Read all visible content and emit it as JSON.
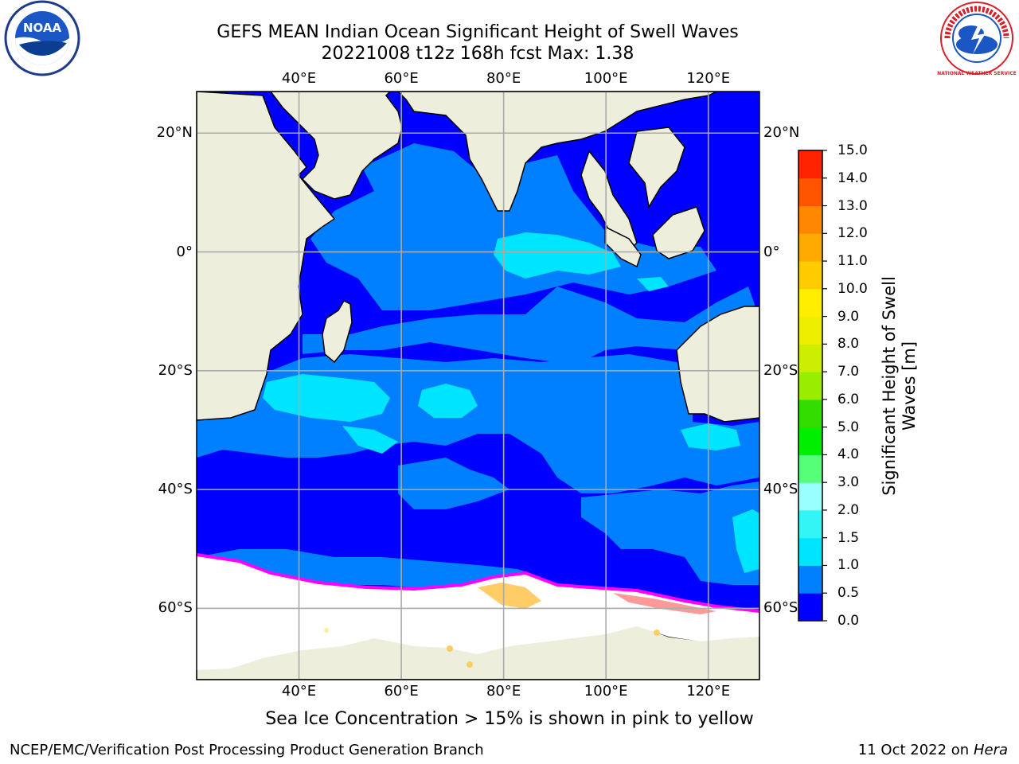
{
  "header": {
    "title_line1": "GEFS MEAN Indian Ocean Significant Height of Swell Waves",
    "title_line2": "20221008 t12z 168h fcst   Max: 1.38"
  },
  "logos": {
    "left_text": "NOAA",
    "right_text": "NATIONAL WEATHER SERVICE"
  },
  "map": {
    "lon_range": [
      20,
      130
    ],
    "lat_range": [
      -72,
      27
    ],
    "lon_ticks": [
      "40°E",
      "60°E",
      "80°E",
      "100°E",
      "120°E"
    ],
    "lon_tick_values": [
      40,
      60,
      80,
      100,
      120
    ],
    "lat_ticks": [
      "20°N",
      "0°",
      "20°S",
      "40°S",
      "60°S"
    ],
    "lat_tick_values": [
      20,
      0,
      -20,
      -40,
      -60
    ],
    "grid": true,
    "colors": {
      "land": "#eeeedd",
      "sea_ice": "#ffffff",
      "ice_edge": [
        "#ff00ff",
        "#ff9999",
        "#ffcc66",
        "#ffee99"
      ]
    }
  },
  "colorbar": {
    "label_line1": "Significant Height of Swell",
    "label_line2": "Waves [m]",
    "ticks": [
      "0.0",
      "0.5",
      "1.0",
      "1.5",
      "2.0",
      "3.0",
      "4.0",
      "5.0",
      "6.0",
      "7.0",
      "8.0",
      "9.0",
      "10.0",
      "11.0",
      "12.0",
      "13.0",
      "14.0",
      "15.0"
    ],
    "colors": [
      "#0000ff",
      "#0080ff",
      "#00e5ff",
      "#33f5f5",
      "#99ffff",
      "#55ff77",
      "#00ee00",
      "#33dd00",
      "#99ee00",
      "#ccee00",
      "#eeee00",
      "#ffee00",
      "#ffcc00",
      "#ffaa00",
      "#ff8800",
      "#ff5500",
      "#ff2200"
    ]
  },
  "notes": {
    "ice_note": "Sea Ice Concentration > 15% is shown in pink to yellow"
  },
  "footer": {
    "left": "NCEP/EMC/Verification Post Processing Product Generation Branch",
    "right_date": "11 Oct 2022 on ",
    "right_host": "Hera"
  }
}
